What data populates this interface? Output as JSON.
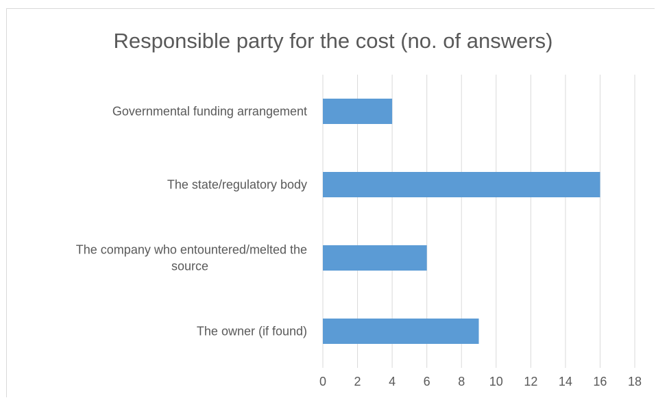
{
  "chart_data": {
    "type": "bar",
    "orientation": "horizontal",
    "title": "Responsible party for the cost (no. of answers)",
    "categories": [
      "Governmental funding arrangement",
      "The state/regulatory body",
      "The company who entountered/melted the source",
      "The owner (if found)"
    ],
    "values": [
      4,
      16,
      6,
      9
    ],
    "xlim": [
      0,
      18
    ],
    "xticks": [
      0,
      2,
      4,
      6,
      8,
      10,
      12,
      14,
      16,
      18
    ],
    "grid": true,
    "bar_color": "#5b9bd5",
    "grid_color": "#d9d9d9",
    "text_color": "#595959"
  }
}
